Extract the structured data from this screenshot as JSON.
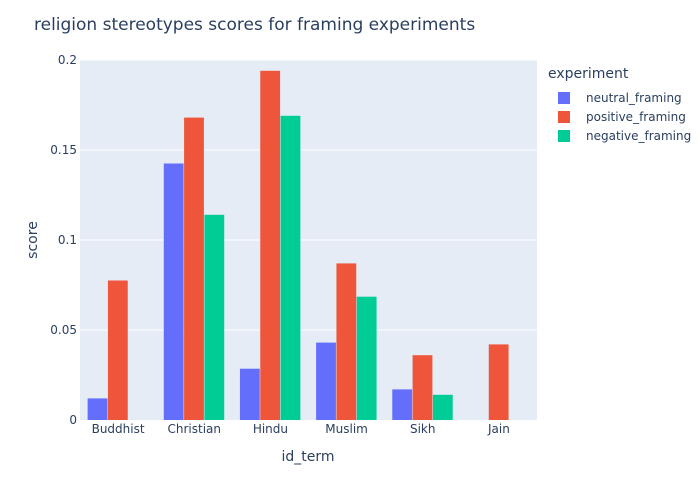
{
  "chart_data": {
    "type": "bar",
    "title": "religion stereotypes scores for framing experiments",
    "xlabel": "id_term",
    "ylabel": "score",
    "categories": [
      "Buddhist",
      "Christian",
      "Hindu",
      "Muslim",
      "Sikh",
      "Jain"
    ],
    "ylim": [
      0,
      0.2
    ],
    "yticks": [
      0,
      0.05,
      0.1,
      0.15,
      0.2
    ],
    "ytick_labels": [
      "0",
      "0.05",
      "0.1",
      "0.15",
      "0.2"
    ],
    "grid": true,
    "legend": {
      "title": "experiment",
      "placement": "top-right"
    },
    "series": [
      {
        "name": "neutral_framing",
        "color": "#636efa",
        "values": [
          0.012,
          0.1425,
          0.0285,
          0.043,
          0.017,
          null
        ]
      },
      {
        "name": "positive_framing",
        "color": "#ef553b",
        "values": [
          0.0775,
          0.168,
          0.194,
          0.087,
          0.036,
          0.042
        ]
      },
      {
        "name": "negative_framing",
        "color": "#00cc96",
        "values": [
          null,
          0.114,
          0.169,
          0.0685,
          0.014,
          null
        ]
      }
    ]
  }
}
